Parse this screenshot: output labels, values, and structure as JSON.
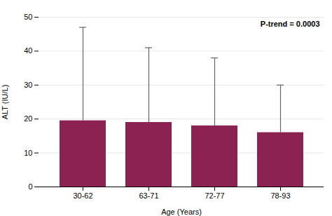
{
  "chart_data": {
    "type": "bar",
    "categories": [
      "30-62",
      "63-71",
      "72-77",
      "78-93"
    ],
    "values": [
      19.5,
      19.0,
      18.0,
      16.0
    ],
    "ci_upper": [
      47.0,
      41.0,
      38.0,
      30.0
    ],
    "color": "#8B2252",
    "xlabel": "Age (Years)",
    "ylabel": "ALT (IU/L)",
    "ylim": [
      0,
      50
    ],
    "yticks": [
      0,
      10,
      20,
      30,
      40,
      50
    ],
    "grid": true,
    "annotation": "P-trend = 0.0003"
  }
}
